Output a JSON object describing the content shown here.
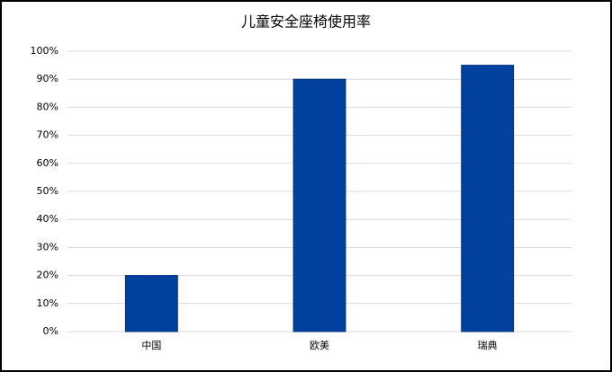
{
  "chart_data": {
    "type": "bar",
    "title": "儿童安全座椅使用率",
    "categories": [
      "中国",
      "欧美",
      "瑞典"
    ],
    "values": [
      20,
      90,
      95
    ],
    "color": "#0041a0",
    "ylim": [
      0,
      100
    ],
    "yticks": [
      {
        "value": 0,
        "label": "0%"
      },
      {
        "value": 10,
        "label": "10%"
      },
      {
        "value": 20,
        "label": "20%"
      },
      {
        "value": 30,
        "label": "30%"
      },
      {
        "value": 40,
        "label": "40%"
      },
      {
        "value": 50,
        "label": "50%"
      },
      {
        "value": 60,
        "label": "60%"
      },
      {
        "value": 70,
        "label": "70%"
      },
      {
        "value": 80,
        "label": "80%"
      },
      {
        "value": 90,
        "label": "90%"
      },
      {
        "value": 100,
        "label": "100%"
      }
    ],
    "grid": true
  }
}
